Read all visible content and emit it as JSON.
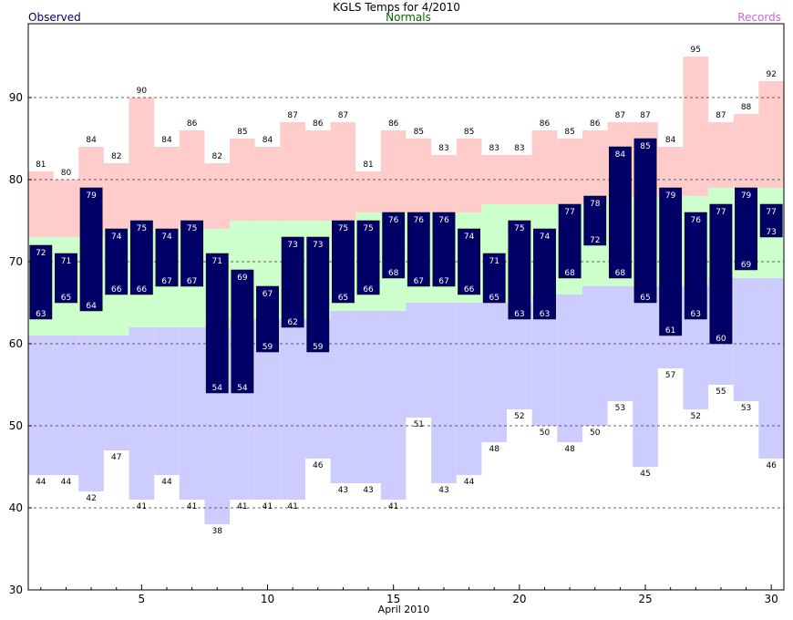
{
  "chart_data": {
    "type": "bar",
    "title": "KGLS Temps for 4/2010",
    "legend": {
      "observed": "Observed",
      "normals": "Normals",
      "records": "Records",
      "placement": "top"
    },
    "xlabel": "April 2010",
    "ylabel": "",
    "xlim": [
      0.5,
      30.5
    ],
    "ylim": [
      30,
      99
    ],
    "x_ticks": [
      5,
      10,
      15,
      20,
      25,
      30
    ],
    "y_ticks": [
      30,
      40,
      50,
      60,
      70,
      80,
      90
    ],
    "grid_lines": [
      40,
      50,
      60,
      70,
      80,
      90
    ],
    "grid": "dashed horizontal",
    "days": [
      1,
      2,
      3,
      4,
      5,
      6,
      7,
      8,
      9,
      10,
      11,
      12,
      13,
      14,
      15,
      16,
      17,
      18,
      19,
      20,
      21,
      22,
      23,
      24,
      25,
      26,
      27,
      28,
      29,
      30
    ],
    "observed_high": [
      72,
      71,
      79,
      74,
      75,
      74,
      75,
      71,
      69,
      67,
      73,
      73,
      75,
      75,
      76,
      76,
      76,
      74,
      71,
      75,
      74,
      77,
      78,
      84,
      85,
      79,
      76,
      77,
      79,
      77
    ],
    "observed_low": [
      63,
      65,
      64,
      66,
      66,
      67,
      67,
      54,
      54,
      59,
      62,
      59,
      65,
      66,
      68,
      67,
      67,
      66,
      65,
      63,
      63,
      68,
      72,
      68,
      65,
      61,
      63,
      60,
      69,
      73
    ],
    "record_high": [
      81,
      80,
      84,
      82,
      90,
      84,
      86,
      82,
      85,
      84,
      87,
      86,
      87,
      81,
      86,
      85,
      83,
      85,
      83,
      83,
      86,
      85,
      86,
      87,
      87,
      84,
      95,
      87,
      88,
      92
    ],
    "record_low": [
      44,
      44,
      42,
      47,
      41,
      44,
      41,
      38,
      41,
      41,
      41,
      46,
      43,
      43,
      41,
      51,
      43,
      44,
      48,
      52,
      50,
      48,
      50,
      53,
      45,
      57,
      52,
      55,
      53,
      46
    ],
    "normal_high": [
      73,
      73,
      73,
      74,
      74,
      74,
      74,
      74,
      75,
      75,
      75,
      75,
      75,
      76,
      76,
      76,
      76,
      76,
      77,
      77,
      77,
      77,
      77,
      78,
      78,
      78,
      78,
      79,
      79,
      79
    ],
    "normal_low": [
      61,
      61,
      61,
      61,
      62,
      62,
      62,
      62,
      63,
      63,
      63,
      63,
      64,
      64,
      64,
      65,
      65,
      65,
      65,
      65,
      66,
      66,
      67,
      67,
      67,
      67,
      67,
      68,
      68,
      68
    ],
    "colors": {
      "observed": "#000066",
      "observed_label": "#ffffff",
      "normals_band": "#ccffcc",
      "records_band_high": "#ffcccc",
      "records_band_low": "#ccccff",
      "title": "#000000",
      "legend_observed": "#000066",
      "legend_normals": "#006600",
      "legend_records": "#cc66cc",
      "grid": "#333333"
    }
  }
}
